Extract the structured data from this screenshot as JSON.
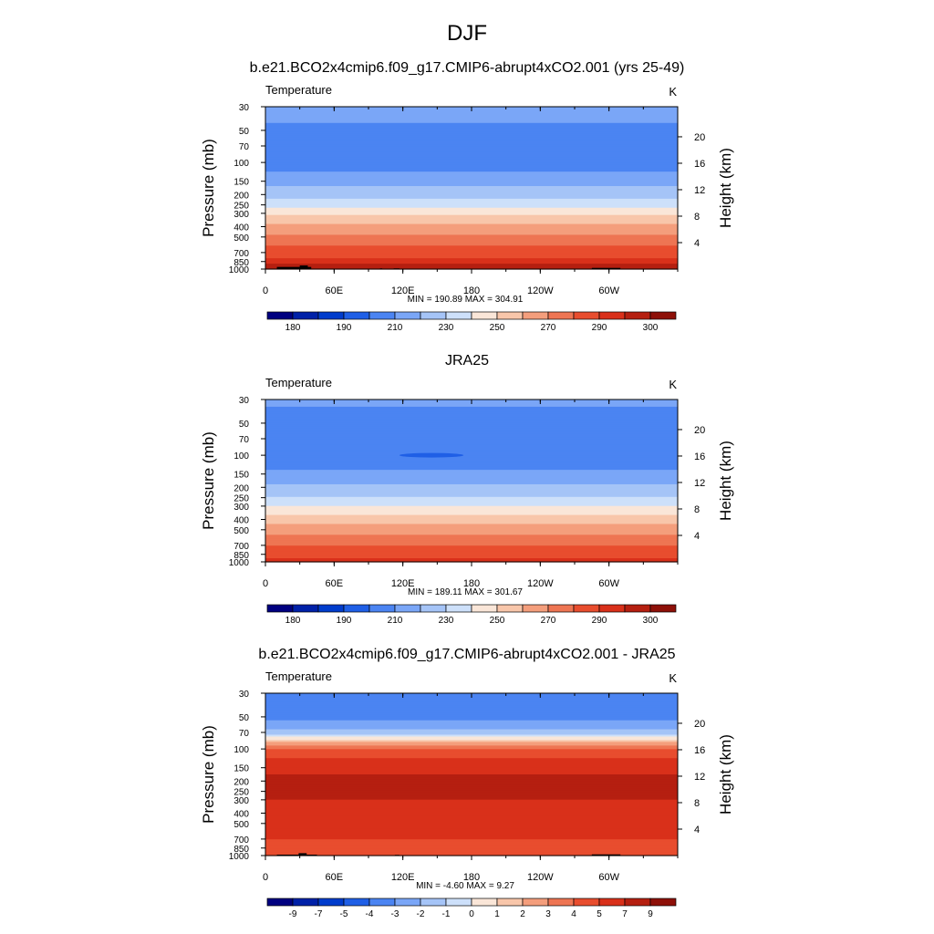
{
  "figure": {
    "title": "DJF"
  },
  "colors": {
    "absolute_bar": [
      "#000080",
      "#0021a8",
      "#003ccc",
      "#1f5fe6",
      "#4b84f2",
      "#7aa6f7",
      "#a5c4f7",
      "#cde0fa",
      "#fae6d8",
      "#f8c6aa",
      "#f49e7c",
      "#ee7553",
      "#e84d2e",
      "#d9301a",
      "#b51f10",
      "#8e1008",
      "#6a0000"
    ],
    "diff_bar": [
      "#000080",
      "#0021a8",
      "#003ccc",
      "#1f5fe6",
      "#4b84f2",
      "#7aa6f7",
      "#a5c4f7",
      "#cde0fa",
      "#fae6d8",
      "#f8c6aa",
      "#f49e7c",
      "#ee7553",
      "#e84d2e",
      "#d9301a",
      "#b51f10",
      "#8e1008",
      "#6a0000"
    ],
    "topography": "#000000"
  },
  "chart_data": [
    {
      "type": "heatmap",
      "title": "b.e21.BCO2x4cmip6.f09_g17.CMIP6-abrupt4xCO2.001 (yrs 25-49)",
      "left_label": "Temperature",
      "right_label": "K",
      "xlabel": "",
      "ylabel": "Pressure (mb)",
      "y2label": "Height (km)",
      "x_ticklabels": [
        "0",
        "60E",
        "120E",
        "180",
        "120W",
        "60W"
      ],
      "x_tick_lon": [
        0,
        60,
        120,
        180,
        240,
        300
      ],
      "xlim": [
        0,
        360
      ],
      "y_ticklabels": [
        "30",
        "50",
        "70",
        "100",
        "150",
        "200",
        "250",
        "300",
        "400",
        "500",
        "700",
        "850",
        "1000"
      ],
      "y_tick_p": [
        30,
        50,
        70,
        100,
        150,
        200,
        250,
        300,
        400,
        500,
        700,
        850,
        1000
      ],
      "ylim": [
        1000,
        30
      ],
      "y2_ticklabels": [
        "4",
        "8",
        "12",
        "16",
        "20"
      ],
      "stats": "MIN = 190.89  MAX = 304.91",
      "min": 190.89,
      "max": 304.91,
      "colorbar_labels": [
        "180",
        "190",
        "210",
        "230",
        "250",
        "270",
        "290",
        "300"
      ],
      "profile_p": [
        30,
        40,
        50,
        70,
        100,
        130,
        150,
        175,
        200,
        225,
        250,
        275,
        300,
        350,
        400,
        450,
        500,
        600,
        700,
        775,
        850,
        925,
        1000
      ],
      "profile_T": [
        212,
        212,
        206,
        203,
        204,
        212,
        217,
        222,
        227,
        232,
        237,
        243,
        248,
        256,
        262,
        268,
        272,
        280,
        286,
        289,
        293,
        296,
        300
      ],
      "topography": [
        {
          "lon": [
            10,
            40
          ],
          "p": [
            955,
            1000
          ]
        },
        {
          "lon": [
            30,
            37
          ],
          "p": [
            925,
            1000
          ]
        },
        {
          "lon": [
            100,
            102
          ],
          "p": [
            985,
            1000
          ]
        },
        {
          "lon": [
            112,
            117
          ],
          "p": [
            985,
            1000
          ]
        },
        {
          "lon": [
            285,
            310
          ],
          "p": [
            975,
            1000
          ]
        }
      ]
    },
    {
      "type": "heatmap",
      "title": "JRA25",
      "left_label": "Temperature",
      "right_label": "K",
      "xlabel": "",
      "ylabel": "Pressure (mb)",
      "y2label": "Height (km)",
      "x_ticklabels": [
        "0",
        "60E",
        "120E",
        "180",
        "120W",
        "60W"
      ],
      "x_tick_lon": [
        0,
        60,
        120,
        180,
        240,
        300
      ],
      "xlim": [
        0,
        360
      ],
      "y_ticklabels": [
        "30",
        "50",
        "70",
        "100",
        "150",
        "200",
        "250",
        "300",
        "400",
        "500",
        "700",
        "850",
        "1000"
      ],
      "y_tick_p": [
        30,
        50,
        70,
        100,
        150,
        200,
        250,
        300,
        400,
        500,
        700,
        850,
        1000
      ],
      "ylim": [
        1000,
        30
      ],
      "y2_ticklabels": [
        "4",
        "8",
        "12",
        "16",
        "20"
      ],
      "stats": "MIN = 189.11  MAX = 301.67",
      "min": 189.11,
      "max": 301.67,
      "colorbar_labels": [
        "180",
        "190",
        "210",
        "230",
        "250",
        "270",
        "290",
        "300"
      ],
      "profile_p": [
        30,
        35,
        40,
        50,
        70,
        100,
        130,
        150,
        175,
        200,
        225,
        250,
        275,
        300,
        350,
        400,
        450,
        500,
        600,
        700,
        775,
        850,
        925,
        1000
      ],
      "profile_T": [
        216,
        210,
        207,
        206,
        203,
        201,
        208,
        213,
        218,
        222,
        226,
        231,
        236,
        240,
        248,
        255,
        262,
        265,
        273,
        280,
        283,
        287,
        290,
        293
      ],
      "feature": {
        "lon_center": 145,
        "lon_halfwidth": 28,
        "p": 100,
        "T": 192
      },
      "topography": []
    },
    {
      "type": "heatmap",
      "title": "b.e21.BCO2x4cmip6.f09_g17.CMIP6-abrupt4xCO2.001 - JRA25",
      "left_label": "Temperature",
      "right_label": "K",
      "xlabel": "",
      "ylabel": "Pressure (mb)",
      "y2label": "Height (km)",
      "x_ticklabels": [
        "0",
        "60E",
        "120E",
        "180",
        "120W",
        "60W"
      ],
      "x_tick_lon": [
        0,
        60,
        120,
        180,
        240,
        300
      ],
      "xlim": [
        0,
        360
      ],
      "y_ticklabels": [
        "30",
        "50",
        "70",
        "100",
        "150",
        "200",
        "250",
        "300",
        "400",
        "500",
        "700",
        "850",
        "1000"
      ],
      "y_tick_p": [
        30,
        50,
        70,
        100,
        150,
        200,
        250,
        300,
        400,
        500,
        700,
        850,
        1000
      ],
      "ylim": [
        1000,
        30
      ],
      "y2_ticklabels": [
        "4",
        "8",
        "12",
        "16",
        "20"
      ],
      "stats": "MIN =  -4.60  MAX =   9.27",
      "min": -4.6,
      "max": 9.27,
      "colorbar_labels": [
        "-9",
        "-7",
        "-5",
        "-4",
        "-3",
        "-2",
        "-1",
        "0",
        "1",
        "2",
        "3",
        "4",
        "5",
        "7",
        "9"
      ],
      "profile_p": [
        30,
        40,
        50,
        60,
        70,
        80,
        90,
        100,
        130,
        150,
        200,
        250,
        300,
        400,
        500,
        700,
        850,
        1000
      ],
      "profile_T": [
        -3.5,
        -3.5,
        -3.2,
        -2.5,
        -1.5,
        0.5,
        2.5,
        4.0,
        5.5,
        6.5,
        7.5,
        7.5,
        7.0,
        6.5,
        6.0,
        5.0,
        4.5,
        4.0
      ],
      "topography": [
        {
          "lon": [
            10,
            45
          ],
          "p": [
            980,
            1000
          ]
        },
        {
          "lon": [
            29,
            36
          ],
          "p": [
            950,
            1000
          ]
        },
        {
          "lon": [
            113,
            117
          ],
          "p": [
            985,
            1000
          ]
        },
        {
          "lon": [
            285,
            310
          ],
          "p": [
            975,
            1000
          ]
        }
      ]
    }
  ]
}
